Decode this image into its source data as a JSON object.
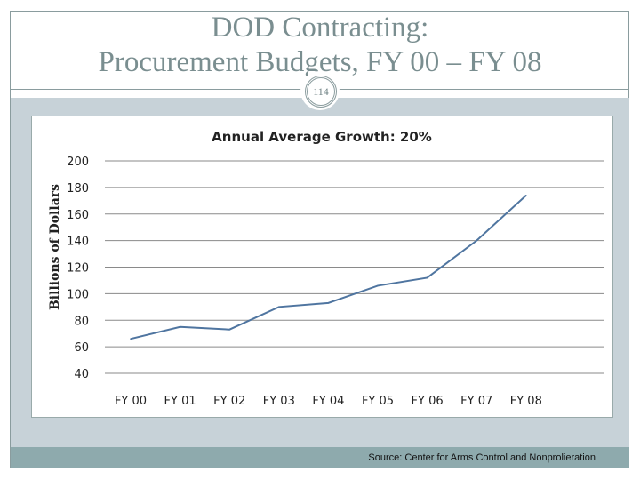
{
  "slide": {
    "title_line1": "DOD Contracting:",
    "title_line2": "Procurement  Budgets, FY 00 – FY 08",
    "page_number": "114",
    "source": "Source: Center for Arms Control and Nonprolieration"
  },
  "colors": {
    "line": "#4f75a0",
    "band": "#c7d2d8",
    "footer": "#8eaaad",
    "title": "#7a8e90"
  },
  "chart_data": {
    "type": "line",
    "title": "Annual Average Growth: 20%",
    "xlabel": "",
    "ylabel": "Billions of Dollars",
    "categories": [
      "FY 00",
      "FY 01",
      "FY 02",
      "FY 03",
      "FY 04",
      "FY 05",
      "FY 06",
      "FY 07",
      "FY 08"
    ],
    "values": [
      66,
      75,
      73,
      90,
      93,
      106,
      112,
      140,
      174
    ],
    "ylim": [
      40,
      200
    ],
    "yticks": [
      "40",
      "60",
      "80",
      "100",
      "120",
      "140",
      "160",
      "180",
      "200"
    ],
    "grid": true,
    "legend": "none"
  }
}
